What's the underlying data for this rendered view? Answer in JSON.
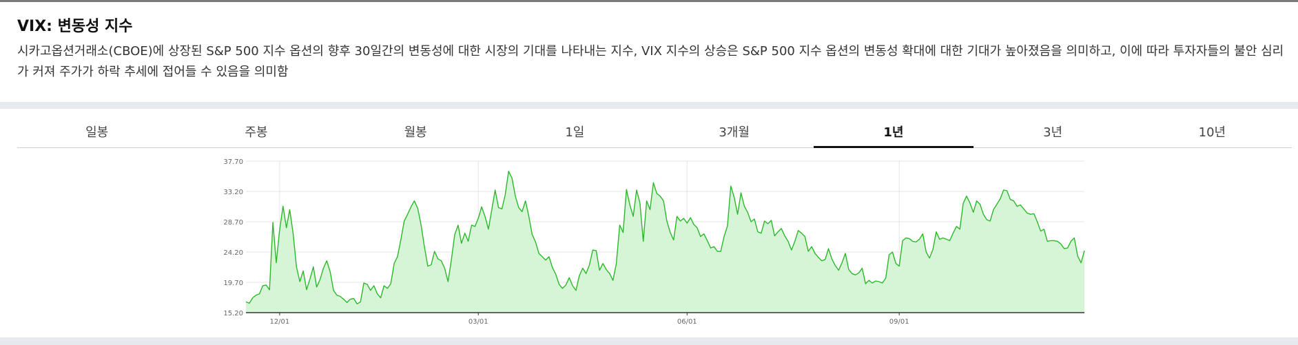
{
  "info": {
    "title": "VIX: 변동성 지수",
    "description": "시카고옵션거래소(CBOE)에 상장된 S&P 500 지수 옵션의 향후 30일간의 변동성에 대한 시장의 기대를 나타내는 지수, VIX 지수의 상승은 S&P 500 지수 옵션의 변동성 확대에 대한 기대가 높아졌음을 의미하고, 이에 따라 투자자들의 불안 심리가 커져 주가가 하락 추세에 접어들 수 있음을 의미함"
  },
  "tabs": [
    {
      "label": "일봉",
      "active": false
    },
    {
      "label": "주봉",
      "active": false
    },
    {
      "label": "월봉",
      "active": false
    },
    {
      "label": "1일",
      "active": false
    },
    {
      "label": "3개월",
      "active": false
    },
    {
      "label": "1년",
      "active": true
    },
    {
      "label": "3년",
      "active": false
    },
    {
      "label": "10년",
      "active": false
    }
  ],
  "colors": {
    "line": "#2ab82a",
    "fill": "#d6f5d6",
    "grid": "#e4e4e4",
    "axis": "#333333",
    "tick_text": "#666666"
  },
  "chart_data": {
    "type": "area",
    "title": "",
    "xlabel": "",
    "ylabel": "",
    "ylim": [
      15.2,
      37.7
    ],
    "y_ticks": [
      "37.70",
      "33.20",
      "28.70",
      "24.20",
      "19.70",
      "15.20"
    ],
    "x_ticks": [
      {
        "label": "12/01",
        "index": 10
      },
      {
        "label": "03/01",
        "index": 69
      },
      {
        "label": "06/01",
        "index": 131
      },
      {
        "label": "09/01",
        "index": 194
      }
    ],
    "grid": true,
    "legend": "none",
    "series": [
      {
        "values": [
          16.8,
          16.6,
          17.4,
          17.8,
          18.0,
          19.2,
          19.3,
          18.6,
          28.6,
          22.6,
          27.5,
          31.0,
          27.8,
          30.5,
          27.0,
          22.0,
          19.8,
          21.4,
          18.6,
          20.2,
          22.0,
          19.0,
          20.1,
          21.8,
          22.9,
          21.3,
          18.5,
          17.8,
          17.6,
          17.2,
          16.7,
          17.2,
          17.3,
          16.5,
          16.8,
          19.6,
          19.4,
          18.5,
          19.2,
          18.0,
          17.4,
          19.2,
          18.8,
          19.5,
          22.5,
          23.5,
          26.0,
          28.8,
          29.8,
          30.9,
          31.8,
          30.7,
          28.2,
          25.0,
          22.1,
          22.3,
          24.3,
          23.2,
          22.9,
          21.8,
          19.8,
          23.0,
          26.8,
          28.2,
          25.5,
          27.0,
          25.8,
          28.2,
          28.0,
          29.2,
          30.9,
          29.5,
          27.6,
          30.5,
          33.4,
          30.8,
          30.6,
          32.7,
          36.2,
          35.2,
          32.5,
          30.8,
          30.2,
          31.8,
          29.5,
          26.8,
          25.7,
          24.0,
          23.5,
          23.0,
          23.5,
          21.9,
          20.9,
          19.4,
          18.8,
          19.3,
          20.4,
          19.2,
          18.5,
          20.7,
          21.8,
          21.0,
          22.3,
          24.5,
          24.4,
          21.5,
          22.5,
          21.6,
          21.0,
          20.0,
          22.5,
          28.2,
          27.1,
          33.5,
          31.2,
          29.5,
          33.4,
          31.5,
          25.8,
          31.8,
          30.5,
          34.5,
          32.9,
          32.5,
          31.8,
          28.8,
          27.1,
          26.0,
          29.5,
          28.8,
          29.2,
          28.5,
          29.3,
          28.3,
          27.8,
          26.5,
          26.9,
          25.9,
          24.8,
          25.0,
          24.3,
          24.3,
          26.5,
          28.1,
          34.0,
          32.3,
          29.8,
          33.0,
          31.0,
          30.1,
          28.7,
          29.1,
          27.2,
          27.0,
          28.8,
          28.4,
          28.9,
          26.6,
          27.2,
          27.7,
          26.6,
          25.8,
          24.5,
          25.8,
          27.4,
          27.0,
          26.5,
          24.3,
          25.0,
          24.0,
          23.4,
          22.9,
          23.1,
          24.7,
          23.2,
          22.2,
          21.5,
          22.6,
          24.0,
          21.6,
          21.0,
          20.8,
          21.1,
          21.8,
          19.5,
          20.0,
          19.6,
          19.9,
          19.8,
          19.6,
          20.3,
          23.8,
          24.2,
          22.5,
          22.1,
          25.9,
          26.3,
          26.2,
          25.8,
          25.7,
          26.1,
          26.9,
          24.2,
          23.3,
          24.6,
          27.2,
          26.1,
          26.3,
          26.1,
          25.9,
          27.0,
          28.0,
          27.6,
          31.4,
          32.5,
          31.5,
          30.1,
          31.8,
          31.3,
          29.8,
          29.0,
          28.8,
          30.5,
          31.3,
          32.1,
          33.4,
          33.3,
          32.0,
          31.8,
          31.0,
          31.2,
          30.6,
          30.0,
          29.8,
          29.9,
          28.7,
          27.3,
          27.6,
          25.8,
          25.9,
          25.9,
          25.8,
          25.4,
          24.7,
          24.8,
          25.8,
          26.3,
          23.6,
          22.6,
          24.4
        ]
      }
    ]
  }
}
